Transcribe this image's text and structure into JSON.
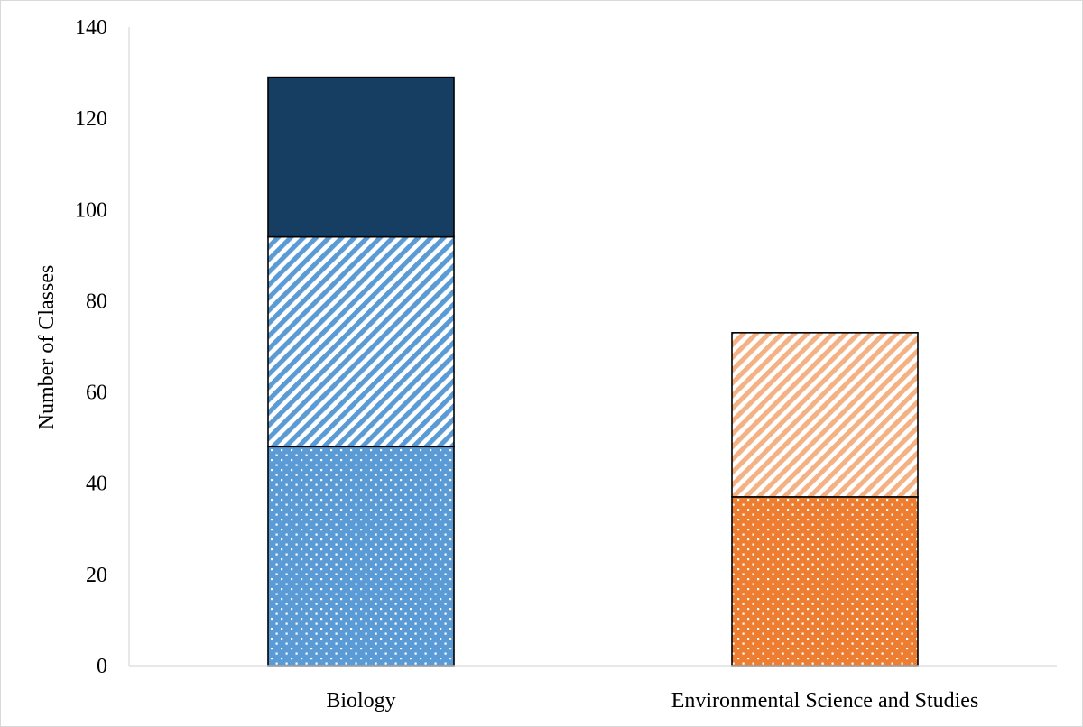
{
  "chart_data": {
    "type": "stacked-bar",
    "title": "",
    "xlabel": "",
    "ylabel": "Number of Classes",
    "ylim": [
      0,
      140
    ],
    "yticks": [
      0,
      20,
      40,
      60,
      80,
      100,
      120,
      140
    ],
    "grid": false,
    "legend": "none",
    "categories": [
      "Biology",
      "Environmental Science and Studies"
    ],
    "stacks": [
      {
        "category": "Biology",
        "segments": [
          {
            "value": 48,
            "color": "#5B9BD5",
            "pattern": "dots"
          },
          {
            "value": 46,
            "color": "#5B9BD5",
            "pattern": "diagonal-stripes"
          },
          {
            "value": 35,
            "color": "#163E62",
            "pattern": "solid"
          }
        ]
      },
      {
        "category": "Environmental Science and Studies",
        "segments": [
          {
            "value": 37,
            "color": "#ED7D31",
            "pattern": "dots"
          },
          {
            "value": 36,
            "color": "#F4B183",
            "pattern": "diagonal-stripes"
          }
        ]
      }
    ]
  }
}
